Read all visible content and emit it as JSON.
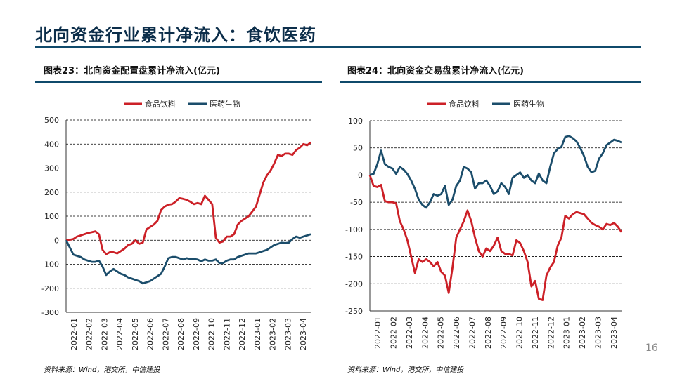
{
  "page": {
    "title": "北向资金行业累计净流入：食饮医药",
    "page_number": "16",
    "colors": {
      "food": "#cc2027",
      "pharma": "#1b4d6b",
      "accent": "#0f4a6b"
    }
  },
  "left": {
    "figure_title": "图表23：北向资金配置盘累计净流入(亿元)",
    "source": "资料来源：Wind，港交所，中信建投"
  },
  "right": {
    "figure_title": "图表24：北向资金交易盘累计净流入(亿元)",
    "source": "资料来源：Wind，港交所，中信建投"
  },
  "chart_data": [
    {
      "type": "line",
      "title": "图表23：北向资金配置盘累计净流入(亿元)",
      "ylim": [
        -300,
        500
      ],
      "yticks": [
        "500",
        "400",
        "300",
        "200",
        "100",
        "0",
        "-100",
        "-200",
        "-300"
      ],
      "grid": true,
      "legend_position": "top",
      "xticks": [
        "2022-01",
        "2022-02",
        "2022-03",
        "2022-04",
        "2022-05",
        "2022-06",
        "2022-07",
        "2022-08",
        "2022-09",
        "2022-10",
        "2022-11",
        "2022-12",
        "2023-01",
        "2023-02",
        "2023-03",
        "2023-04"
      ],
      "series": [
        {
          "name": "食品饮料",
          "color": "#cc2027",
          "values": [
            0,
            2,
            5,
            15,
            20,
            25,
            30,
            33,
            37,
            25,
            -40,
            -58,
            -50,
            -50,
            -55,
            -45,
            -35,
            -20,
            -15,
            0,
            -15,
            -10,
            45,
            55,
            65,
            80,
            125,
            140,
            148,
            150,
            160,
            175,
            172,
            168,
            160,
            150,
            155,
            150,
            185,
            168,
            150,
            10,
            -10,
            -5,
            15,
            15,
            25,
            65,
            80,
            90,
            100,
            120,
            140,
            190,
            240,
            270,
            290,
            320,
            355,
            350,
            360,
            360,
            355,
            375,
            385,
            400,
            395,
            407
          ]
        },
        {
          "name": "医药生物",
          "color": "#1b4d6b",
          "values": [
            0,
            -30,
            -60,
            -65,
            -70,
            -80,
            -85,
            -90,
            -90,
            -85,
            -110,
            -145,
            -130,
            -120,
            -130,
            -140,
            -145,
            -155,
            -160,
            -165,
            -170,
            -180,
            -175,
            -170,
            -160,
            -150,
            -140,
            -110,
            -75,
            -70,
            -70,
            -75,
            -80,
            -75,
            -78,
            -78,
            -80,
            -88,
            -80,
            -85,
            -85,
            -80,
            -95,
            -95,
            -85,
            -80,
            -80,
            -70,
            -65,
            -60,
            -55,
            -55,
            -55,
            -50,
            -45,
            -40,
            -30,
            -20,
            -15,
            -10,
            -12,
            -10,
            5,
            15,
            10,
            15,
            20,
            25
          ]
        }
      ]
    },
    {
      "type": "line",
      "title": "图表24：北向资金交易盘累计净流入(亿元)",
      "ylim": [
        -250,
        100
      ],
      "yticks": [
        "100",
        "50",
        "0",
        "-50",
        "-100",
        "-150",
        "-200",
        "-250"
      ],
      "grid": true,
      "legend_position": "top",
      "xticks": [
        "2022-01",
        "2022-02",
        "2022-03",
        "2022-04",
        "2022-05",
        "2022-06",
        "2022-07",
        "2022-08",
        "2022-09",
        "2022-10",
        "2022-11",
        "2022-12",
        "2023-01",
        "2023-02",
        "2023-03",
        "2023-04"
      ],
      "series": [
        {
          "name": "食品饮料",
          "color": "#cc2027",
          "values": [
            0,
            -20,
            -22,
            -18,
            -48,
            -50,
            -50,
            -52,
            -85,
            -100,
            -120,
            -150,
            -180,
            -155,
            -160,
            -155,
            -160,
            -168,
            -160,
            -178,
            -185,
            -217,
            -170,
            -115,
            -100,
            -85,
            -65,
            -85,
            -115,
            -140,
            -150,
            -135,
            -140,
            -130,
            -115,
            -140,
            -145,
            -145,
            -148,
            -120,
            -125,
            -140,
            -160,
            -205,
            -195,
            -228,
            -230,
            -185,
            -170,
            -160,
            -130,
            -115,
            -75,
            -80,
            -72,
            -68,
            -70,
            -72,
            -80,
            -88,
            -92,
            -95,
            -100,
            -90,
            -92,
            -88,
            -95,
            -105
          ]
        },
        {
          "name": "医药生物",
          "color": "#1b4d6b",
          "values": [
            0,
            2,
            20,
            45,
            20,
            15,
            12,
            2,
            15,
            10,
            2,
            -10,
            -25,
            -45,
            -55,
            -60,
            -50,
            -35,
            -38,
            -35,
            -20,
            -55,
            -45,
            -20,
            -10,
            15,
            12,
            5,
            -25,
            -15,
            -15,
            -10,
            -20,
            -35,
            -30,
            -15,
            -22,
            -35,
            -5,
            0,
            5,
            -5,
            0,
            -10,
            -15,
            3,
            -10,
            -15,
            15,
            40,
            48,
            52,
            70,
            72,
            68,
            62,
            50,
            35,
            15,
            5,
            8,
            30,
            40,
            55,
            60,
            65,
            63,
            60
          ]
        }
      ]
    }
  ]
}
